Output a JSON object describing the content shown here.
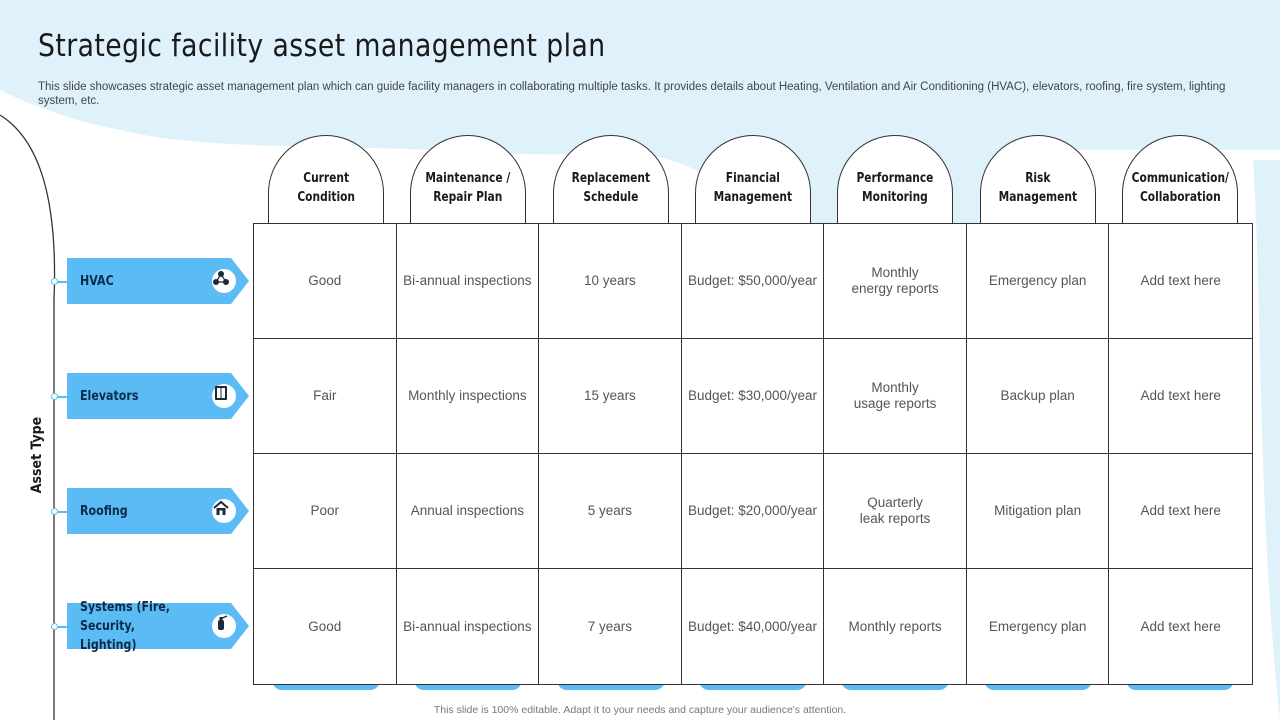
{
  "slide": {
    "title": "Strategic facility asset management plan",
    "subtitle": "This slide showcases strategic asset management plan which can guide facility managers in collaborating multiple tasks. It provides details about Heating, Ventilation and Air Conditioning (HVAC), elevators, roofing, fire system, lighting system, etc.",
    "axis_label": "Asset Type",
    "footer": "This slide is 100% editable. Adapt it to your needs and capture your audience's attention."
  },
  "colors": {
    "accent": "#5bbcf5",
    "background_wash": "#dff2fc",
    "border": "#333333"
  },
  "columns": [
    "Current\nCondition",
    "Maintenance /\nRepair Plan",
    "Replacement\nSchedule",
    "Financial\nManagement",
    "Performance\nMonitoring",
    "Risk\nManagement",
    "Communication/\nCollaboration"
  ],
  "rows": [
    {
      "label": "HVAC",
      "icon": "hvac-molecule-icon",
      "cells": [
        "Good",
        "Bi-annual inspections",
        "10 years",
        "Budget: $50,000/year",
        "Monthly\nenergy reports",
        "Emergency plan",
        "Add text here"
      ]
    },
    {
      "label": "Elevators",
      "icon": "elevator-icon",
      "cells": [
        "Fair",
        "Monthly inspections",
        "15 years",
        "Budget: $30,000/year",
        "Monthly\nusage reports",
        "Backup plan",
        "Add text here"
      ]
    },
    {
      "label": "Roofing",
      "icon": "roof-house-icon",
      "cells": [
        "Poor",
        "Annual inspections",
        "5 years",
        "Budget: $20,000/year",
        "Quarterly\nleak reports",
        "Mitigation plan",
        "Add text here"
      ]
    },
    {
      "label": "Systems (Fire,\nSecurity, Lighting)",
      "icon": "fire-extinguisher-icon",
      "cells": [
        "Good",
        "Bi-annual inspections",
        "7 years",
        "Budget: $40,000/year",
        "Monthly reports",
        "Emergency plan",
        "Add text here"
      ]
    }
  ]
}
